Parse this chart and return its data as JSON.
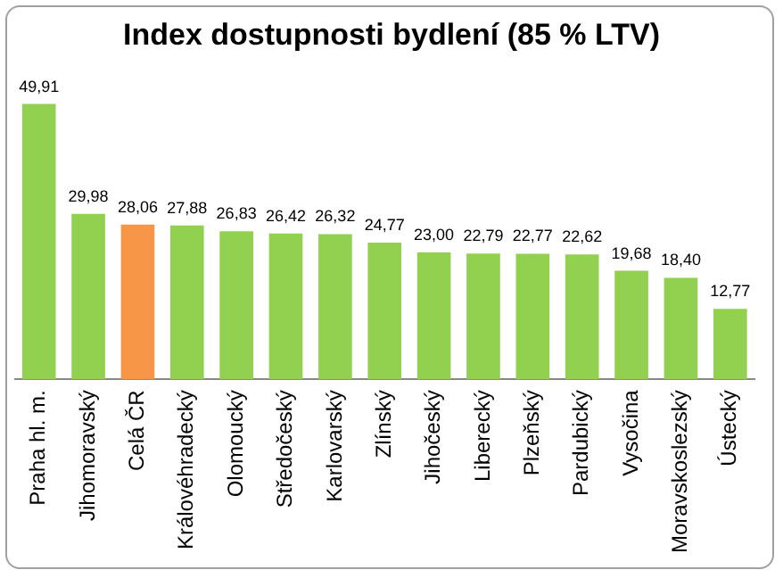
{
  "chart_data": {
    "type": "bar",
    "title": "Index dostupnosti bydlení (85 % LTV)",
    "categories": [
      "Praha hl. m.",
      "Jihomoravský",
      "Celá ČR",
      "Královéhradecký",
      "Olomoucký",
      "Středočeský",
      "Karlovarský",
      "Zlínský",
      "Jihočeský",
      "Liberecký",
      "Plzeňský",
      "Pardubický",
      "Vysočina",
      "Moravskoslezský",
      "Ústecký"
    ],
    "values": [
      49.91,
      29.98,
      28.06,
      27.88,
      26.83,
      26.42,
      26.32,
      24.77,
      23.0,
      22.79,
      22.77,
      22.62,
      19.68,
      18.4,
      12.77
    ],
    "colors": [
      "#92d050",
      "#92d050",
      "#f79646",
      "#92d050",
      "#92d050",
      "#92d050",
      "#92d050",
      "#92d050",
      "#92d050",
      "#92d050",
      "#92d050",
      "#92d050",
      "#92d050",
      "#92d050",
      "#92d050"
    ],
    "value_labels": [
      "49,91",
      "29,98",
      "28,06",
      "27,88",
      "26,83",
      "26,42",
      "26,32",
      "24,77",
      "23,00",
      "22,79",
      "22,77",
      "22,62",
      "19,68",
      "18,40",
      "12,77"
    ],
    "tick_labels": "x",
    "grid": false,
    "legend": false
  }
}
